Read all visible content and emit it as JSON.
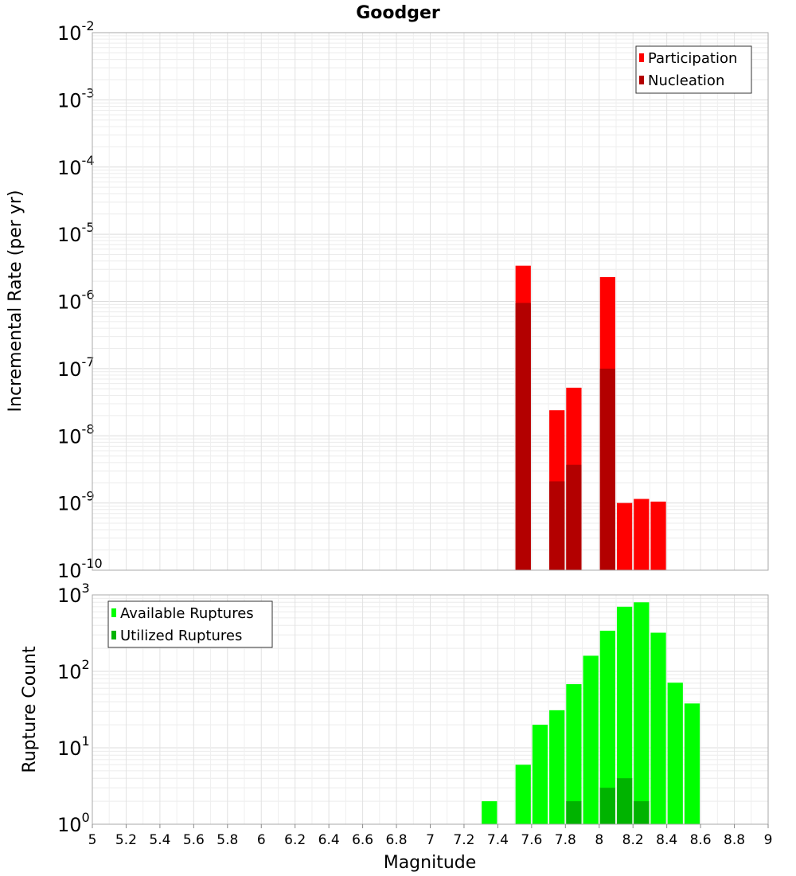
{
  "chart_data": [
    {
      "type": "bar",
      "title": "Goodger",
      "ylabel": "Incremental Rate (per yr)",
      "xlabel": "",
      "yscale": "log",
      "ylim_exp": [
        -10,
        -2
      ],
      "xlim": [
        5,
        9
      ],
      "bin_width": 0.1,
      "grid": true,
      "legend_position": "top-right",
      "legend": [
        "Participation",
        "Nucleation"
      ],
      "colors": {
        "Participation": "#ff0000",
        "Nucleation": "#b30000"
      },
      "x": [
        7.55,
        7.75,
        7.85,
        8.05,
        8.15,
        8.25,
        8.35
      ],
      "series": [
        {
          "name": "Participation",
          "values": [
            3.4e-06,
            2.4e-08,
            5.2e-08,
            2.3e-06,
            1e-09,
            1.15e-09,
            1.05e-09
          ]
        },
        {
          "name": "Nucleation",
          "values": [
            9.5e-07,
            2.1e-09,
            3.7e-09,
            1e-07,
            null,
            null,
            null
          ]
        }
      ]
    },
    {
      "type": "bar",
      "ylabel": "Rupture Count",
      "xlabel": "Magnitude",
      "yscale": "log",
      "ylim_exp": [
        0,
        3
      ],
      "xlim": [
        5,
        9
      ],
      "bin_width": 0.1,
      "grid": true,
      "legend_position": "top-left",
      "legend": [
        "Available Ruptures",
        "Utilized Ruptures"
      ],
      "colors": {
        "Available Ruptures": "#00ff00",
        "Utilized Ruptures": "#00b300"
      },
      "x": [
        7.05,
        7.35,
        7.45,
        7.55,
        7.65,
        7.75,
        7.85,
        7.95,
        8.05,
        8.15,
        8.25,
        8.35,
        8.45,
        8.55
      ],
      "series": [
        {
          "name": "Available Ruptures",
          "values": [
            1,
            2,
            1,
            6,
            20,
            31,
            68,
            160,
            340,
            700,
            800,
            320,
            71,
            38
          ]
        },
        {
          "name": "Utilized Ruptures",
          "values": [
            null,
            null,
            null,
            1,
            null,
            1,
            2,
            null,
            3,
            4,
            2,
            1,
            null,
            null
          ]
        }
      ]
    }
  ],
  "x_tick_labels": [
    "5",
    "5.2",
    "5.4",
    "5.6",
    "5.8",
    "6",
    "6.2",
    "6.4",
    "6.6",
    "6.8",
    "7",
    "7.2",
    "7.4",
    "7.6",
    "7.8",
    "8",
    "8.2",
    "8.4",
    "8.6",
    "8.8",
    "9"
  ]
}
